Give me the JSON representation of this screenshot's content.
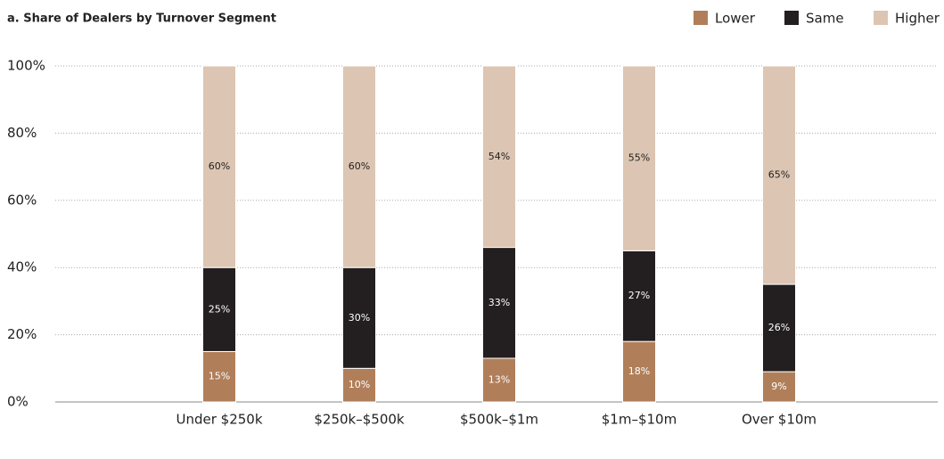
{
  "chart_data": {
    "type": "stacked-bar",
    "title": "a. Share of Dealers by Turnover Segment",
    "categories": [
      "Under $250k",
      "$250k–$500k",
      "$500k–$1m",
      "$1m–$10m",
      "Over $10m"
    ],
    "series": [
      {
        "name": "Lower",
        "color": "#b07f5a",
        "values": [
          15,
          10,
          13,
          18,
          9
        ],
        "value_labels": [
          "15%",
          "10%",
          "13%",
          "18%",
          "9%"
        ]
      },
      {
        "name": "Same",
        "color": "#231f20",
        "values": [
          25,
          30,
          33,
          27,
          26
        ],
        "value_labels": [
          "25%",
          "30%",
          "33%",
          "27%",
          "26%"
        ]
      },
      {
        "name": "Higher",
        "color": "#dcc5b2",
        "values": [
          60,
          60,
          54,
          55,
          65
        ],
        "value_labels": [
          "60%",
          "60%",
          "54%",
          "55%",
          "65%"
        ]
      }
    ],
    "ylim": [
      0,
      100
    ],
    "yticks": [
      {
        "value": 0,
        "label": "0%"
      },
      {
        "value": 20,
        "label": "20%"
      },
      {
        "value": 40,
        "label": "40%"
      },
      {
        "value": 60,
        "label": "60%"
      },
      {
        "value": 80,
        "label": "80%"
      },
      {
        "value": 100,
        "label": "100%"
      }
    ],
    "grid": true,
    "legend": "top-right"
  }
}
